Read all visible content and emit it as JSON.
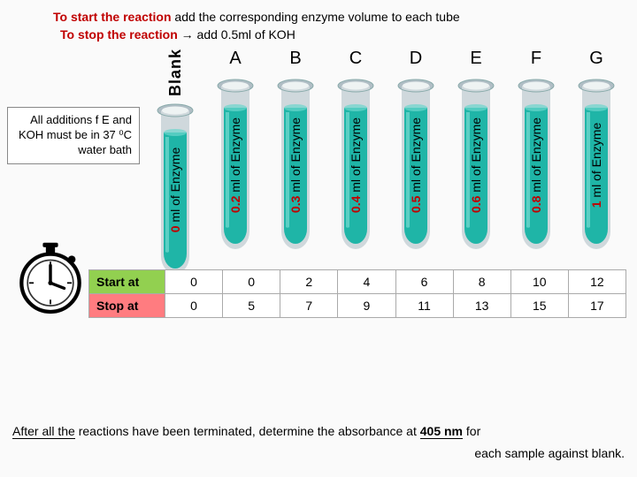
{
  "header": {
    "start_bold": "To start the reaction",
    "start_rest": " add the corresponding enzyme volume to each tube",
    "stop_bold": "To stop the reaction",
    "arrow": " → ",
    "stop_rest": " add 0.5ml of KOH"
  },
  "note": "All additions f E and KOH must be in 37 ⁰C water bath",
  "blank_label": "Blank",
  "tubes": [
    {
      "letter": "",
      "amount": "0",
      "rest": " ml of Enzyme"
    },
    {
      "letter": "A",
      "amount": "0.2",
      "rest": " ml of Enzyme"
    },
    {
      "letter": "B",
      "amount": "0.3",
      "rest": " ml of Enzyme"
    },
    {
      "letter": "C",
      "amount": "0.4",
      "rest": " ml of Enzyme"
    },
    {
      "letter": "D",
      "amount": "0.5",
      "rest": " ml of Enzyme"
    },
    {
      "letter": "E",
      "amount": "0.6",
      "rest": " ml of Enzyme"
    },
    {
      "letter": "F",
      "amount": "0.8",
      "rest": " ml of Enzyme"
    },
    {
      "letter": "G",
      "amount": "1",
      "rest": " ml of Enzyme"
    }
  ],
  "tube_style": {
    "fill": "#1fb5a7",
    "highlight": "#6bd6cc",
    "glass": "#cfd8dc",
    "rim": "#b0bec5"
  },
  "table": {
    "start_label": "Start at",
    "stop_label": "Stop at",
    "start": [
      "0",
      "0",
      "2",
      "4",
      "6",
      "8",
      "10",
      "12"
    ],
    "stop": [
      "0",
      "5",
      "7",
      "9",
      "11",
      "13",
      "15",
      "17"
    ],
    "start_bg": "#92d050",
    "stop_bg": "#ff7c80"
  },
  "footer": {
    "after_ul": "After all the",
    "mid": " reactions have been terminated, determine the absorbance at ",
    "nm": "405 nm",
    "tail": " for",
    "line2": "each sample against blank."
  }
}
